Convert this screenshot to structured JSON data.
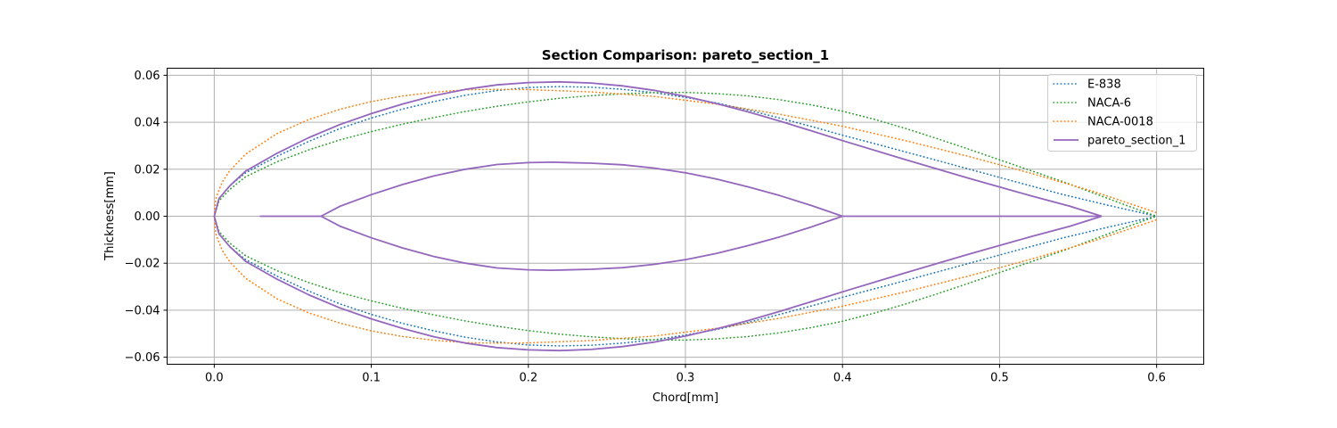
{
  "chart_data": {
    "type": "line",
    "title": "Section Comparison: pareto_section_1",
    "xlabel": "Chord[mm]",
    "ylabel": "Thickness[mm]",
    "xlim": [
      -0.03,
      0.63
    ],
    "ylim": [
      -0.063,
      0.063
    ],
    "grid": true,
    "legend": "top-right",
    "xticks": [
      0.0,
      0.1,
      0.2,
      0.3,
      0.4,
      0.5,
      0.6
    ],
    "xtick_labels": [
      "0.0",
      "0.1",
      "0.2",
      "0.3",
      "0.4",
      "0.5",
      "0.6"
    ],
    "yticks": [
      -0.06,
      -0.04,
      -0.02,
      0.0,
      0.02,
      0.04,
      0.06
    ],
    "ytick_labels": [
      "−0.06",
      "−0.04",
      "−0.02",
      "0.00",
      "0.02",
      "0.04",
      "0.06"
    ],
    "series": [
      {
        "name": "E-838",
        "color": "#1f77b4",
        "style": "dotted",
        "upper": [
          [
            0.0,
            0.0
          ],
          [
            0.003,
            0.0075
          ],
          [
            0.01,
            0.013
          ],
          [
            0.02,
            0.0185
          ],
          [
            0.04,
            0.0255
          ],
          [
            0.06,
            0.0318
          ],
          [
            0.08,
            0.0373
          ],
          [
            0.1,
            0.0418
          ],
          [
            0.12,
            0.0456
          ],
          [
            0.14,
            0.0488
          ],
          [
            0.16,
            0.0515
          ],
          [
            0.18,
            0.0535
          ],
          [
            0.2,
            0.0548
          ],
          [
            0.22,
            0.0552
          ],
          [
            0.24,
            0.0549
          ],
          [
            0.26,
            0.054
          ],
          [
            0.28,
            0.0526
          ],
          [
            0.3,
            0.0506
          ],
          [
            0.32,
            0.0482
          ],
          [
            0.34,
            0.0452
          ],
          [
            0.36,
            0.0418
          ],
          [
            0.38,
            0.0382
          ],
          [
            0.4,
            0.0345
          ],
          [
            0.43,
            0.0292
          ],
          [
            0.46,
            0.0238
          ],
          [
            0.5,
            0.0165
          ],
          [
            0.54,
            0.0093
          ],
          [
            0.57,
            0.0045
          ],
          [
            0.6,
            0.0
          ]
        ],
        "lower": [
          [
            0.0,
            0.0
          ],
          [
            0.003,
            -0.0075
          ],
          [
            0.01,
            -0.013
          ],
          [
            0.02,
            -0.0185
          ],
          [
            0.04,
            -0.0255
          ],
          [
            0.06,
            -0.0318
          ],
          [
            0.08,
            -0.0373
          ],
          [
            0.1,
            -0.0418
          ],
          [
            0.12,
            -0.0456
          ],
          [
            0.14,
            -0.0488
          ],
          [
            0.16,
            -0.0515
          ],
          [
            0.18,
            -0.0535
          ],
          [
            0.2,
            -0.0548
          ],
          [
            0.22,
            -0.0552
          ],
          [
            0.24,
            -0.0549
          ],
          [
            0.26,
            -0.054
          ],
          [
            0.28,
            -0.0526
          ],
          [
            0.3,
            -0.0506
          ],
          [
            0.32,
            -0.0482
          ],
          [
            0.34,
            -0.0452
          ],
          [
            0.36,
            -0.0418
          ],
          [
            0.38,
            -0.0382
          ],
          [
            0.4,
            -0.0345
          ],
          [
            0.43,
            -0.0292
          ],
          [
            0.46,
            -0.0238
          ],
          [
            0.5,
            -0.0165
          ],
          [
            0.54,
            -0.0093
          ],
          [
            0.57,
            -0.0045
          ],
          [
            0.6,
            0.0
          ]
        ]
      },
      {
        "name": "NACA-6",
        "color": "#2ca02c",
        "style": "dotted",
        "upper": [
          [
            0.0,
            0.0
          ],
          [
            0.003,
            0.0065
          ],
          [
            0.01,
            0.0115
          ],
          [
            0.02,
            0.0168
          ],
          [
            0.04,
            0.0232
          ],
          [
            0.06,
            0.0282
          ],
          [
            0.08,
            0.0325
          ],
          [
            0.1,
            0.036
          ],
          [
            0.12,
            0.0392
          ],
          [
            0.14,
            0.042
          ],
          [
            0.16,
            0.0446
          ],
          [
            0.18,
            0.0468
          ],
          [
            0.2,
            0.0487
          ],
          [
            0.22,
            0.0502
          ],
          [
            0.24,
            0.0513
          ],
          [
            0.26,
            0.0521
          ],
          [
            0.28,
            0.0526
          ],
          [
            0.3,
            0.0527
          ],
          [
            0.32,
            0.0522
          ],
          [
            0.34,
            0.0512
          ],
          [
            0.36,
            0.0496
          ],
          [
            0.38,
            0.0474
          ],
          [
            0.4,
            0.0447
          ],
          [
            0.42,
            0.0413
          ],
          [
            0.44,
            0.0374
          ],
          [
            0.46,
            0.0331
          ],
          [
            0.48,
            0.0286
          ],
          [
            0.5,
            0.024
          ],
          [
            0.52,
            0.0194
          ],
          [
            0.54,
            0.0148
          ],
          [
            0.56,
            0.0098
          ],
          [
            0.58,
            0.0048
          ],
          [
            0.6,
            0.0
          ]
        ],
        "lower": [
          [
            0.0,
            0.0
          ],
          [
            0.003,
            -0.0065
          ],
          [
            0.01,
            -0.0115
          ],
          [
            0.02,
            -0.0168
          ],
          [
            0.04,
            -0.0232
          ],
          [
            0.06,
            -0.0282
          ],
          [
            0.08,
            -0.0325
          ],
          [
            0.1,
            -0.036
          ],
          [
            0.12,
            -0.0392
          ],
          [
            0.14,
            -0.042
          ],
          [
            0.16,
            -0.0446
          ],
          [
            0.18,
            -0.0468
          ],
          [
            0.2,
            -0.0487
          ],
          [
            0.22,
            -0.0502
          ],
          [
            0.24,
            -0.0513
          ],
          [
            0.26,
            -0.0521
          ],
          [
            0.28,
            -0.0526
          ],
          [
            0.3,
            -0.0527
          ],
          [
            0.32,
            -0.0522
          ],
          [
            0.34,
            -0.0512
          ],
          [
            0.36,
            -0.0496
          ],
          [
            0.38,
            -0.0474
          ],
          [
            0.4,
            -0.0447
          ],
          [
            0.42,
            -0.0413
          ],
          [
            0.44,
            -0.0374
          ],
          [
            0.46,
            -0.0331
          ],
          [
            0.48,
            -0.0286
          ],
          [
            0.5,
            -0.024
          ],
          [
            0.52,
            -0.0194
          ],
          [
            0.54,
            -0.0148
          ],
          [
            0.56,
            -0.0098
          ],
          [
            0.58,
            -0.0048
          ],
          [
            0.6,
            0.0
          ]
        ]
      },
      {
        "name": "NACA-0018",
        "color": "#ff7f0e",
        "style": "dotted",
        "upper": [
          [
            0.0,
            0.0
          ],
          [
            0.001,
            0.0075
          ],
          [
            0.005,
            0.0145
          ],
          [
            0.01,
            0.0195
          ],
          [
            0.02,
            0.0264
          ],
          [
            0.04,
            0.0352
          ],
          [
            0.06,
            0.0411
          ],
          [
            0.08,
            0.0455
          ],
          [
            0.1,
            0.0488
          ],
          [
            0.12,
            0.0512
          ],
          [
            0.14,
            0.0528
          ],
          [
            0.16,
            0.0538
          ],
          [
            0.18,
            0.054
          ],
          [
            0.2,
            0.0539
          ],
          [
            0.24,
            0.0529
          ],
          [
            0.28,
            0.051
          ],
          [
            0.32,
            0.0477
          ],
          [
            0.36,
            0.0434
          ],
          [
            0.4,
            0.0383
          ],
          [
            0.44,
            0.0322
          ],
          [
            0.48,
            0.0255
          ],
          [
            0.52,
            0.0183
          ],
          [
            0.56,
            0.0105
          ],
          [
            0.6,
            0.0015
          ]
        ],
        "lower": [
          [
            0.0,
            0.0
          ],
          [
            0.001,
            -0.0075
          ],
          [
            0.005,
            -0.0145
          ],
          [
            0.01,
            -0.0195
          ],
          [
            0.02,
            -0.0264
          ],
          [
            0.04,
            -0.0352
          ],
          [
            0.06,
            -0.0411
          ],
          [
            0.08,
            -0.0455
          ],
          [
            0.1,
            -0.0488
          ],
          [
            0.12,
            -0.0512
          ],
          [
            0.14,
            -0.0528
          ],
          [
            0.16,
            -0.0538
          ],
          [
            0.18,
            -0.054
          ],
          [
            0.2,
            -0.0539
          ],
          [
            0.24,
            -0.0529
          ],
          [
            0.28,
            -0.051
          ],
          [
            0.32,
            -0.0477
          ],
          [
            0.36,
            -0.0434
          ],
          [
            0.4,
            -0.0383
          ],
          [
            0.44,
            -0.0322
          ],
          [
            0.48,
            -0.0255
          ],
          [
            0.52,
            -0.0183
          ],
          [
            0.56,
            -0.0105
          ],
          [
            0.6,
            -0.0015
          ]
        ]
      },
      {
        "name": "pareto_section_1",
        "color": "#9467bd",
        "style": "solid",
        "upper": [
          [
            0.0,
            0.0
          ],
          [
            0.003,
            0.0075
          ],
          [
            0.01,
            0.013
          ],
          [
            0.02,
            0.0192
          ],
          [
            0.04,
            0.0268
          ],
          [
            0.06,
            0.0334
          ],
          [
            0.08,
            0.039
          ],
          [
            0.1,
            0.0437
          ],
          [
            0.12,
            0.0478
          ],
          [
            0.14,
            0.0513
          ],
          [
            0.16,
            0.054
          ],
          [
            0.18,
            0.0559
          ],
          [
            0.2,
            0.0569
          ],
          [
            0.22,
            0.0572
          ],
          [
            0.24,
            0.0567
          ],
          [
            0.26,
            0.0555
          ],
          [
            0.28,
            0.0536
          ],
          [
            0.3,
            0.051
          ],
          [
            0.32,
            0.0479
          ],
          [
            0.34,
            0.0444
          ],
          [
            0.36,
            0.0405
          ],
          [
            0.38,
            0.0364
          ],
          [
            0.4,
            0.0322
          ],
          [
            0.44,
            0.0241
          ],
          [
            0.48,
            0.0162
          ],
          [
            0.52,
            0.0087
          ],
          [
            0.545,
            0.0042
          ],
          [
            0.565,
            0.0
          ]
        ],
        "lower": [
          [
            0.0,
            0.0
          ],
          [
            0.003,
            -0.0075
          ],
          [
            0.01,
            -0.013
          ],
          [
            0.02,
            -0.0192
          ],
          [
            0.04,
            -0.0268
          ],
          [
            0.06,
            -0.0334
          ],
          [
            0.08,
            -0.039
          ],
          [
            0.1,
            -0.0437
          ],
          [
            0.12,
            -0.0478
          ],
          [
            0.14,
            -0.0513
          ],
          [
            0.16,
            -0.054
          ],
          [
            0.18,
            -0.0559
          ],
          [
            0.2,
            -0.0569
          ],
          [
            0.22,
            -0.0572
          ],
          [
            0.24,
            -0.0567
          ],
          [
            0.26,
            -0.0555
          ],
          [
            0.28,
            -0.0536
          ],
          [
            0.3,
            -0.051
          ],
          [
            0.32,
            -0.0479
          ],
          [
            0.34,
            -0.0444
          ],
          [
            0.36,
            -0.0405
          ],
          [
            0.38,
            -0.0364
          ],
          [
            0.4,
            -0.0322
          ],
          [
            0.44,
            -0.0241
          ],
          [
            0.48,
            -0.0162
          ],
          [
            0.52,
            -0.0087
          ],
          [
            0.545,
            -0.0042
          ],
          [
            0.565,
            0.0
          ]
        ],
        "inner_upper": [
          [
            0.068,
            0.0
          ],
          [
            0.08,
            0.0042
          ],
          [
            0.1,
            0.0092
          ],
          [
            0.12,
            0.0135
          ],
          [
            0.14,
            0.0172
          ],
          [
            0.16,
            0.02
          ],
          [
            0.18,
            0.022
          ],
          [
            0.2,
            0.0228
          ],
          [
            0.215,
            0.023
          ],
          [
            0.24,
            0.0226
          ],
          [
            0.26,
            0.0219
          ],
          [
            0.28,
            0.0205
          ],
          [
            0.3,
            0.0185
          ],
          [
            0.32,
            0.0158
          ],
          [
            0.34,
            0.0125
          ],
          [
            0.36,
            0.0088
          ],
          [
            0.38,
            0.0046
          ],
          [
            0.4,
            0.0
          ]
        ],
        "inner_lower": [
          [
            0.068,
            0.0
          ],
          [
            0.08,
            -0.0042
          ],
          [
            0.1,
            -0.0092
          ],
          [
            0.12,
            -0.0135
          ],
          [
            0.14,
            -0.0172
          ],
          [
            0.16,
            -0.02
          ],
          [
            0.18,
            -0.022
          ],
          [
            0.2,
            -0.0228
          ],
          [
            0.215,
            -0.023
          ],
          [
            0.24,
            -0.0226
          ],
          [
            0.26,
            -0.0219
          ],
          [
            0.28,
            -0.0205
          ],
          [
            0.3,
            -0.0185
          ],
          [
            0.32,
            -0.0158
          ],
          [
            0.34,
            -0.0125
          ],
          [
            0.36,
            -0.0088
          ],
          [
            0.38,
            -0.0046
          ],
          [
            0.4,
            0.0
          ]
        ],
        "camber_segments": [
          [
            [
              0.029,
              0.0
            ],
            [
              0.068,
              0.0
            ]
          ],
          [
            [
              0.4,
              0.0
            ],
            [
              0.565,
              0.0
            ]
          ]
        ]
      }
    ]
  }
}
